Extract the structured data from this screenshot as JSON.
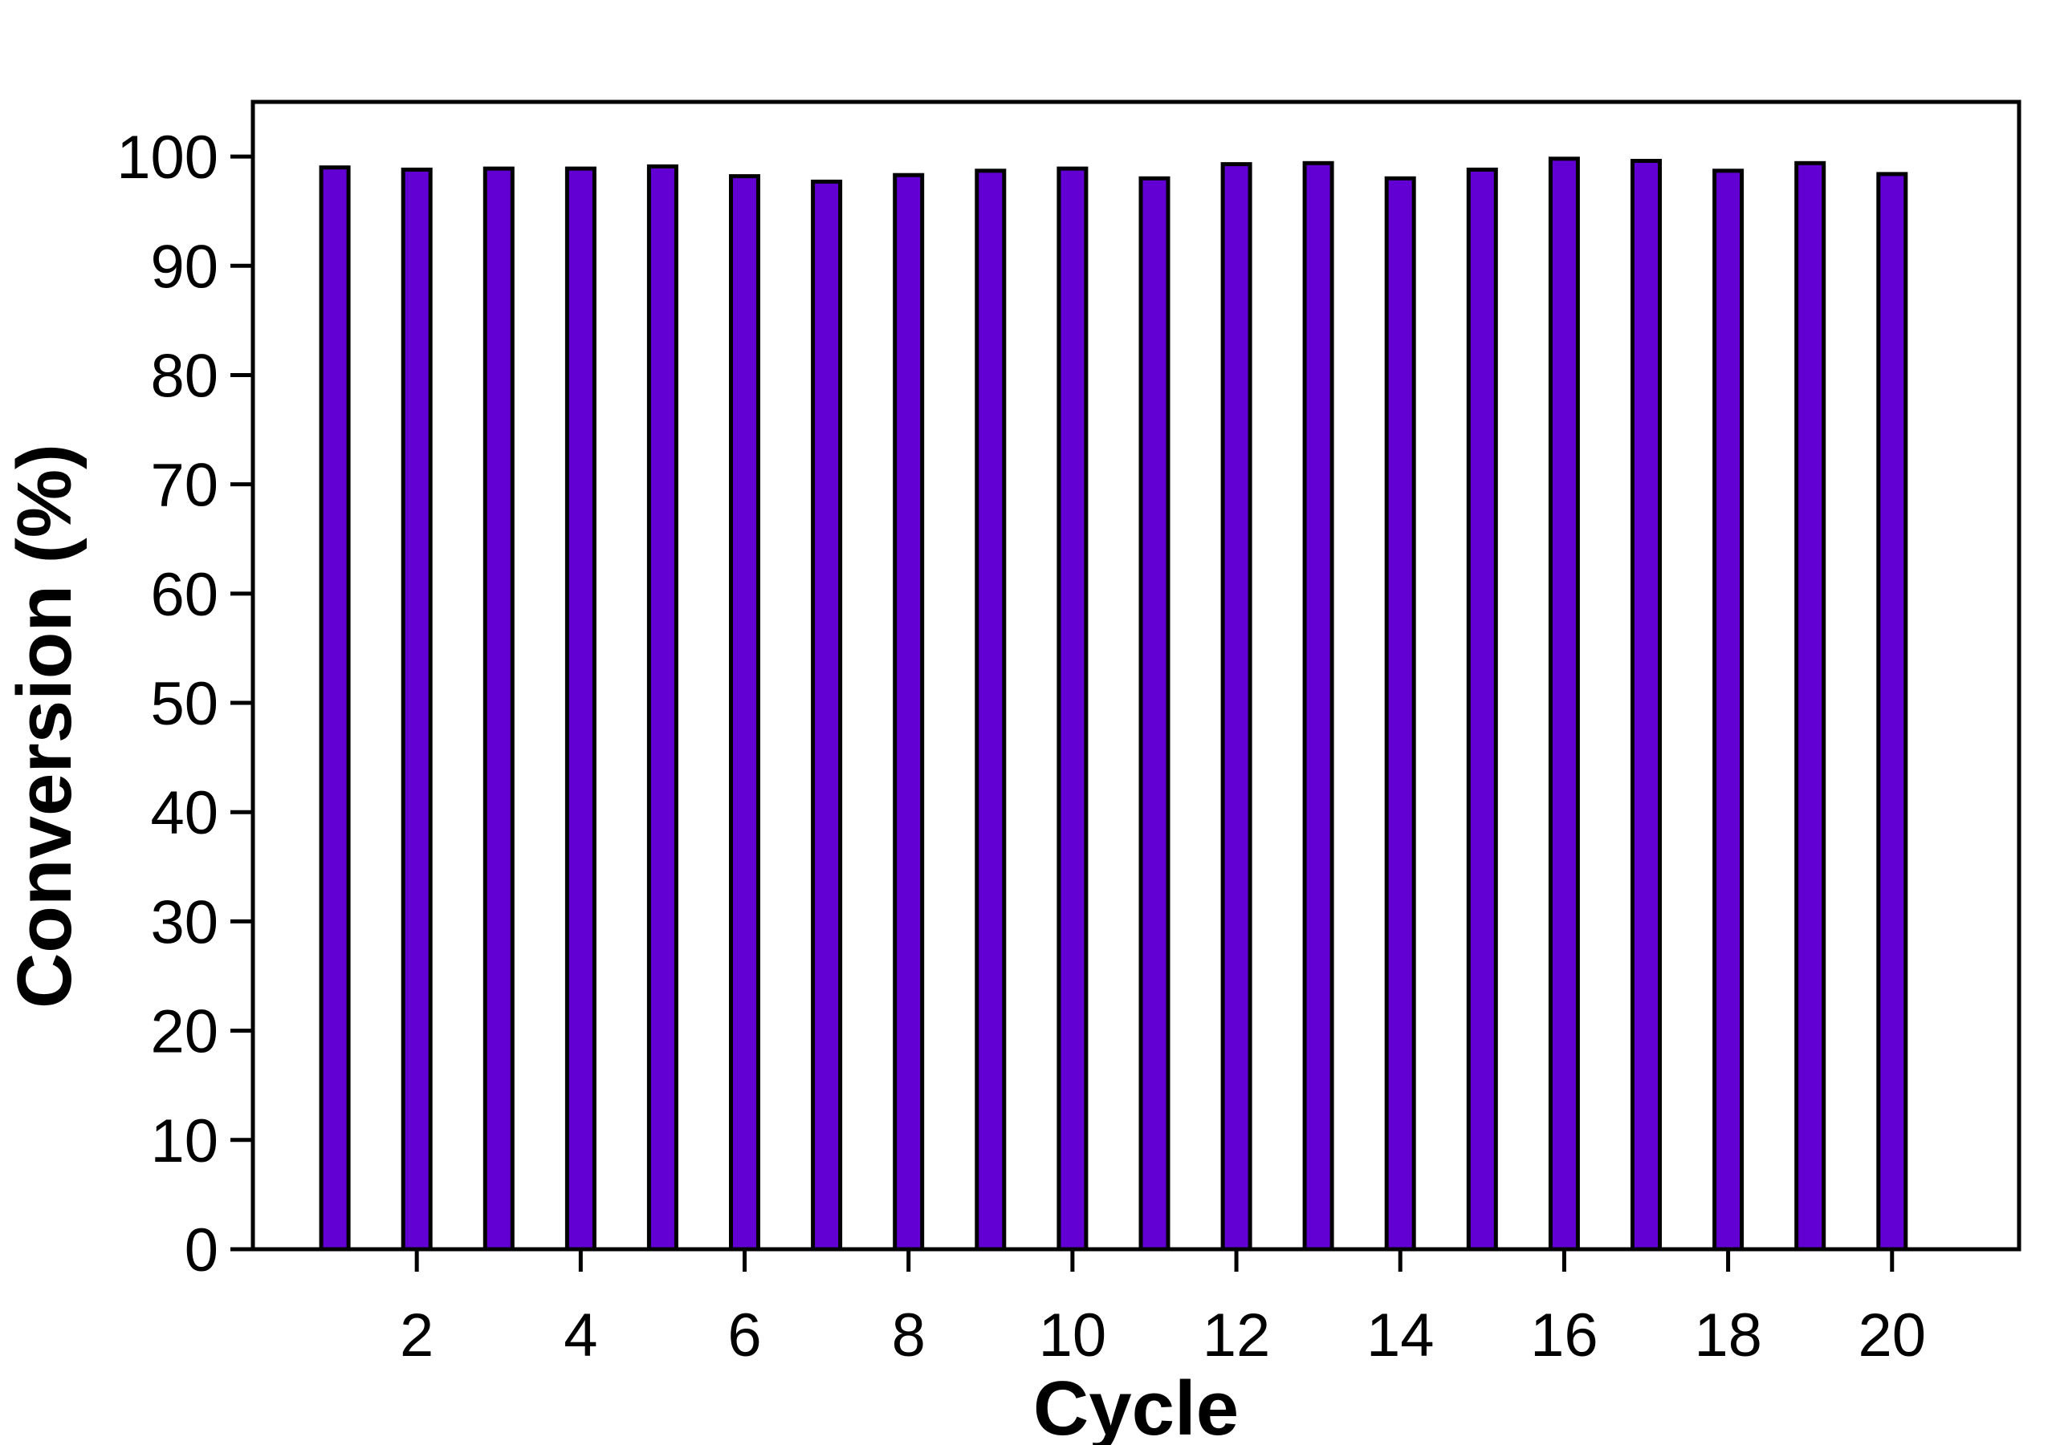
{
  "chart_data": {
    "type": "bar",
    "title": "",
    "xlabel": "Cycle",
    "ylabel": "Conversion (%)",
    "x": [
      1,
      2,
      3,
      4,
      5,
      6,
      7,
      8,
      9,
      10,
      11,
      12,
      13,
      14,
      15,
      16,
      17,
      18,
      19,
      20
    ],
    "values": [
      99.0,
      98.8,
      98.9,
      98.9,
      99.1,
      98.2,
      97.7,
      98.3,
      98.7,
      98.9,
      98.0,
      99.3,
      99.4,
      98.0,
      98.8,
      99.8,
      99.6,
      98.7,
      99.4,
      98.4
    ],
    "xticks": [
      2,
      4,
      6,
      8,
      10,
      12,
      14,
      16,
      18,
      20
    ],
    "yticks": [
      0,
      10,
      20,
      30,
      40,
      50,
      60,
      70,
      80,
      90,
      100
    ],
    "xlim": [
      0.0,
      21.55
    ],
    "ylim": [
      0,
      105
    ],
    "bar_color": "#6200d4",
    "edge_color": "#000000",
    "grid": false,
    "legend": "none"
  }
}
